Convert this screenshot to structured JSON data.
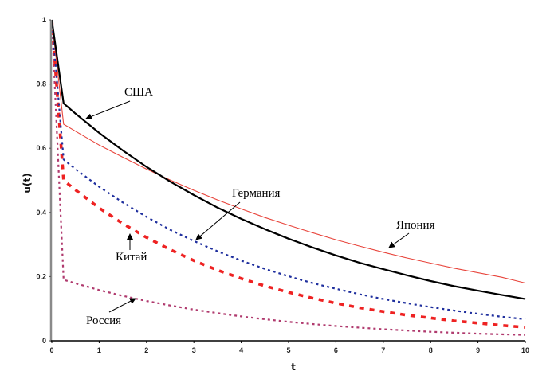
{
  "chart_data": {
    "type": "line",
    "title": "",
    "xlabel": "t",
    "ylabel": "u(t)",
    "xlim": [
      0,
      10
    ],
    "ylim": [
      0,
      1
    ],
    "xticks": [
      "0",
      "1",
      "2",
      "3",
      "4",
      "5",
      "6",
      "7",
      "8",
      "9",
      "10"
    ],
    "yticks": [
      "0",
      "0.2",
      "0.4",
      "0.6",
      "0.8",
      "1"
    ],
    "grid": false,
    "legend": "none",
    "x": [
      0,
      0.25,
      0.5,
      1,
      1.5,
      2,
      2.5,
      3,
      3.5,
      4,
      4.5,
      5,
      5.5,
      6,
      6.5,
      7,
      7.5,
      8,
      8.5,
      9,
      9.5,
      10
    ],
    "series": [
      {
        "name": "США",
        "color": "#000000",
        "style": "solid-thick",
        "values": [
          1,
          0.74,
          0.708,
          0.648,
          0.593,
          0.542,
          0.496,
          0.454,
          0.415,
          0.38,
          0.348,
          0.318,
          0.291,
          0.266,
          0.243,
          0.223,
          0.204,
          0.186,
          0.17,
          0.156,
          0.143,
          0.13
        ]
      },
      {
        "name": "Япония",
        "color": "#e8453c",
        "style": "solid-thin",
        "values": [
          1,
          0.675,
          0.653,
          0.61,
          0.572,
          0.535,
          0.501,
          0.469,
          0.439,
          0.411,
          0.384,
          0.36,
          0.337,
          0.315,
          0.295,
          0.276,
          0.258,
          0.242,
          0.226,
          0.212,
          0.198,
          0.18
        ]
      },
      {
        "name": "Германия",
        "color": "#1f2f9e",
        "style": "dotted",
        "values": [
          1,
          0.565,
          0.535,
          0.48,
          0.431,
          0.386,
          0.346,
          0.311,
          0.279,
          0.25,
          0.224,
          0.201,
          0.18,
          0.162,
          0.145,
          0.13,
          0.117,
          0.105,
          0.094,
          0.084,
          0.075,
          0.067
        ]
      },
      {
        "name": "Китай",
        "color": "#ee2222",
        "style": "dashed-thick",
        "values": [
          1,
          0.5,
          0.47,
          0.414,
          0.365,
          0.322,
          0.284,
          0.25,
          0.22,
          0.194,
          0.171,
          0.151,
          0.133,
          0.117,
          0.103,
          0.091,
          0.08,
          0.071,
          0.062,
          0.055,
          0.048,
          0.042
        ]
      },
      {
        "name": "Россия",
        "color": "#b03a6e",
        "style": "dotted",
        "values": [
          1,
          0.19,
          0.179,
          0.158,
          0.14,
          0.124,
          0.11,
          0.097,
          0.086,
          0.076,
          0.067,
          0.059,
          0.052,
          0.046,
          0.041,
          0.036,
          0.032,
          0.028,
          0.025,
          0.022,
          0.02,
          0.018
        ]
      }
    ],
    "annotations": [
      {
        "text": "США",
        "points_to": "США"
      },
      {
        "text": "Германия",
        "points_to": "Германия"
      },
      {
        "text": "Япония",
        "points_to": "Япония"
      },
      {
        "text": "Китай",
        "points_to": "Китай"
      },
      {
        "text": "Россия",
        "points_to": "Россия"
      }
    ]
  }
}
